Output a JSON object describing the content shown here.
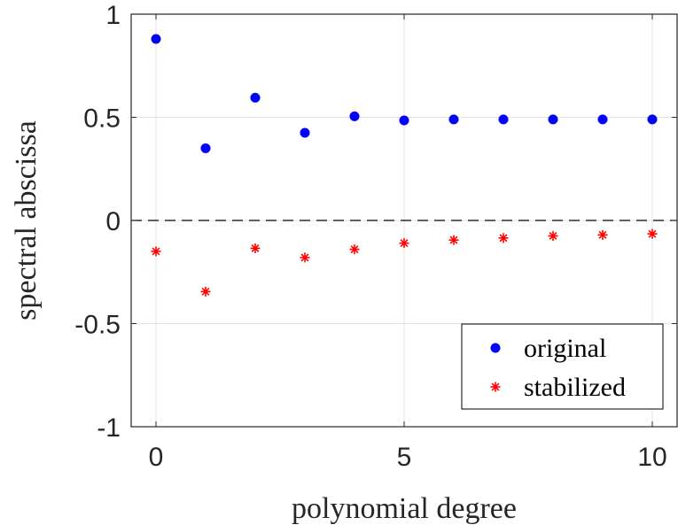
{
  "chart_data": {
    "type": "scatter",
    "xlabel": "polynomial degree",
    "ylabel": "spectral abscissa",
    "xlim": [
      -0.5,
      10.5
    ],
    "ylim": [
      -1,
      1
    ],
    "xticks": [
      0,
      5,
      10
    ],
    "yticks": [
      1,
      0.5,
      0,
      -0.5,
      -1
    ],
    "ytick_labels": [
      "1",
      "0.5",
      "0",
      "-0.5",
      "-1"
    ],
    "xtick_labels": [
      "0",
      "5",
      "10"
    ],
    "grid": true,
    "reference_line": {
      "y": 0,
      "style": "dashed"
    },
    "legend_position": "bottom-right",
    "series": [
      {
        "name": "original",
        "marker": "filled-circle",
        "color": "#0000ff",
        "x": [
          0,
          1,
          2,
          3,
          4,
          5,
          6,
          7,
          8,
          9,
          10
        ],
        "y": [
          0.88,
          0.35,
          0.595,
          0.425,
          0.505,
          0.485,
          0.49,
          0.49,
          0.49,
          0.49,
          0.49
        ]
      },
      {
        "name": "stabilized",
        "marker": "asterisk",
        "color": "#ff0000",
        "x": [
          0,
          1,
          2,
          3,
          4,
          5,
          6,
          7,
          8,
          9,
          10
        ],
        "y": [
          -0.15,
          -0.345,
          -0.135,
          -0.18,
          -0.14,
          -0.11,
          -0.095,
          -0.085,
          -0.075,
          -0.07,
          -0.065
        ]
      }
    ]
  }
}
